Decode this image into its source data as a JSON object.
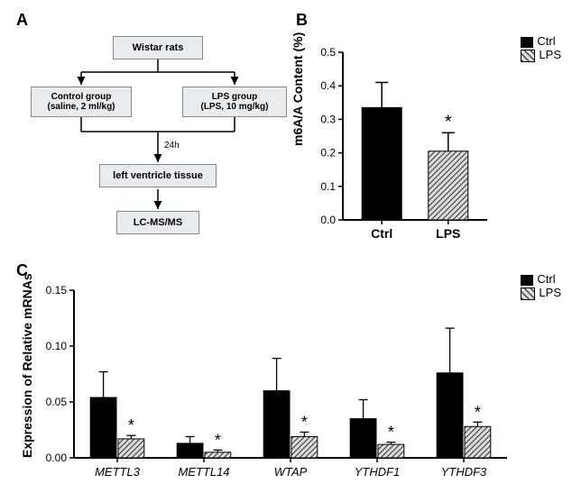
{
  "panel_labels": {
    "A": "A",
    "B": "B",
    "C": "C"
  },
  "colors": {
    "background": "#ffffff",
    "box_bg": "#e9ecef",
    "box_border": "#888888",
    "axis": "#000000",
    "bar_ctrl": "#000000",
    "hatch_fg": "#4a4a4a",
    "hatch_bg": "#dcdcdc",
    "text": "#000000",
    "arrow": "#000000"
  },
  "panelA": {
    "boxes": {
      "top": "Wistar rats",
      "left": "Control group\n(saline, 2 ml/kg)",
      "right": "LPS group\n(LPS, 10 mg/kg)",
      "time": "24h",
      "tissue": "left ventricle tissue",
      "analysis": "LC-MS/MS"
    }
  },
  "panelB": {
    "type": "bar",
    "ylabel": "m6A/A Content (%)",
    "ylim": [
      0,
      0.5
    ],
    "yticks": [
      0.0,
      0.1,
      0.2,
      0.3,
      0.4,
      0.5
    ],
    "categories": [
      "Ctrl",
      "LPS"
    ],
    "values": [
      0.335,
      0.205
    ],
    "errors": [
      0.075,
      0.055
    ],
    "sig": {
      "LPS": "*"
    },
    "legend": [
      "Ctrl",
      "LPS"
    ],
    "bar_width": 0.55
  },
  "panelC": {
    "type": "grouped_bar",
    "ylabel": "Expression of Relative mRNAs",
    "ylim": [
      0,
      0.15
    ],
    "yticks": [
      0.0,
      0.05,
      0.1,
      0.15
    ],
    "groups": [
      "METTL3",
      "METTL14",
      "WTAP",
      "YTHDF1",
      "YTHDF3"
    ],
    "series": [
      {
        "name": "Ctrl",
        "values": [
          0.054,
          0.013,
          0.06,
          0.035,
          0.076
        ],
        "errors": [
          0.023,
          0.006,
          0.029,
          0.017,
          0.04
        ]
      },
      {
        "name": "LPS",
        "values": [
          0.017,
          0.005,
          0.019,
          0.012,
          0.028
        ],
        "errors": [
          0.003,
          0.002,
          0.004,
          0.002,
          0.004
        ]
      }
    ],
    "sig_on_lps": [
      "*",
      "*",
      "*",
      "*",
      "*"
    ],
    "legend": [
      "Ctrl",
      "LPS"
    ]
  },
  "fonts": {
    "panel_label_size": 18,
    "axis_label_size": 14,
    "tick_size": 12
  }
}
